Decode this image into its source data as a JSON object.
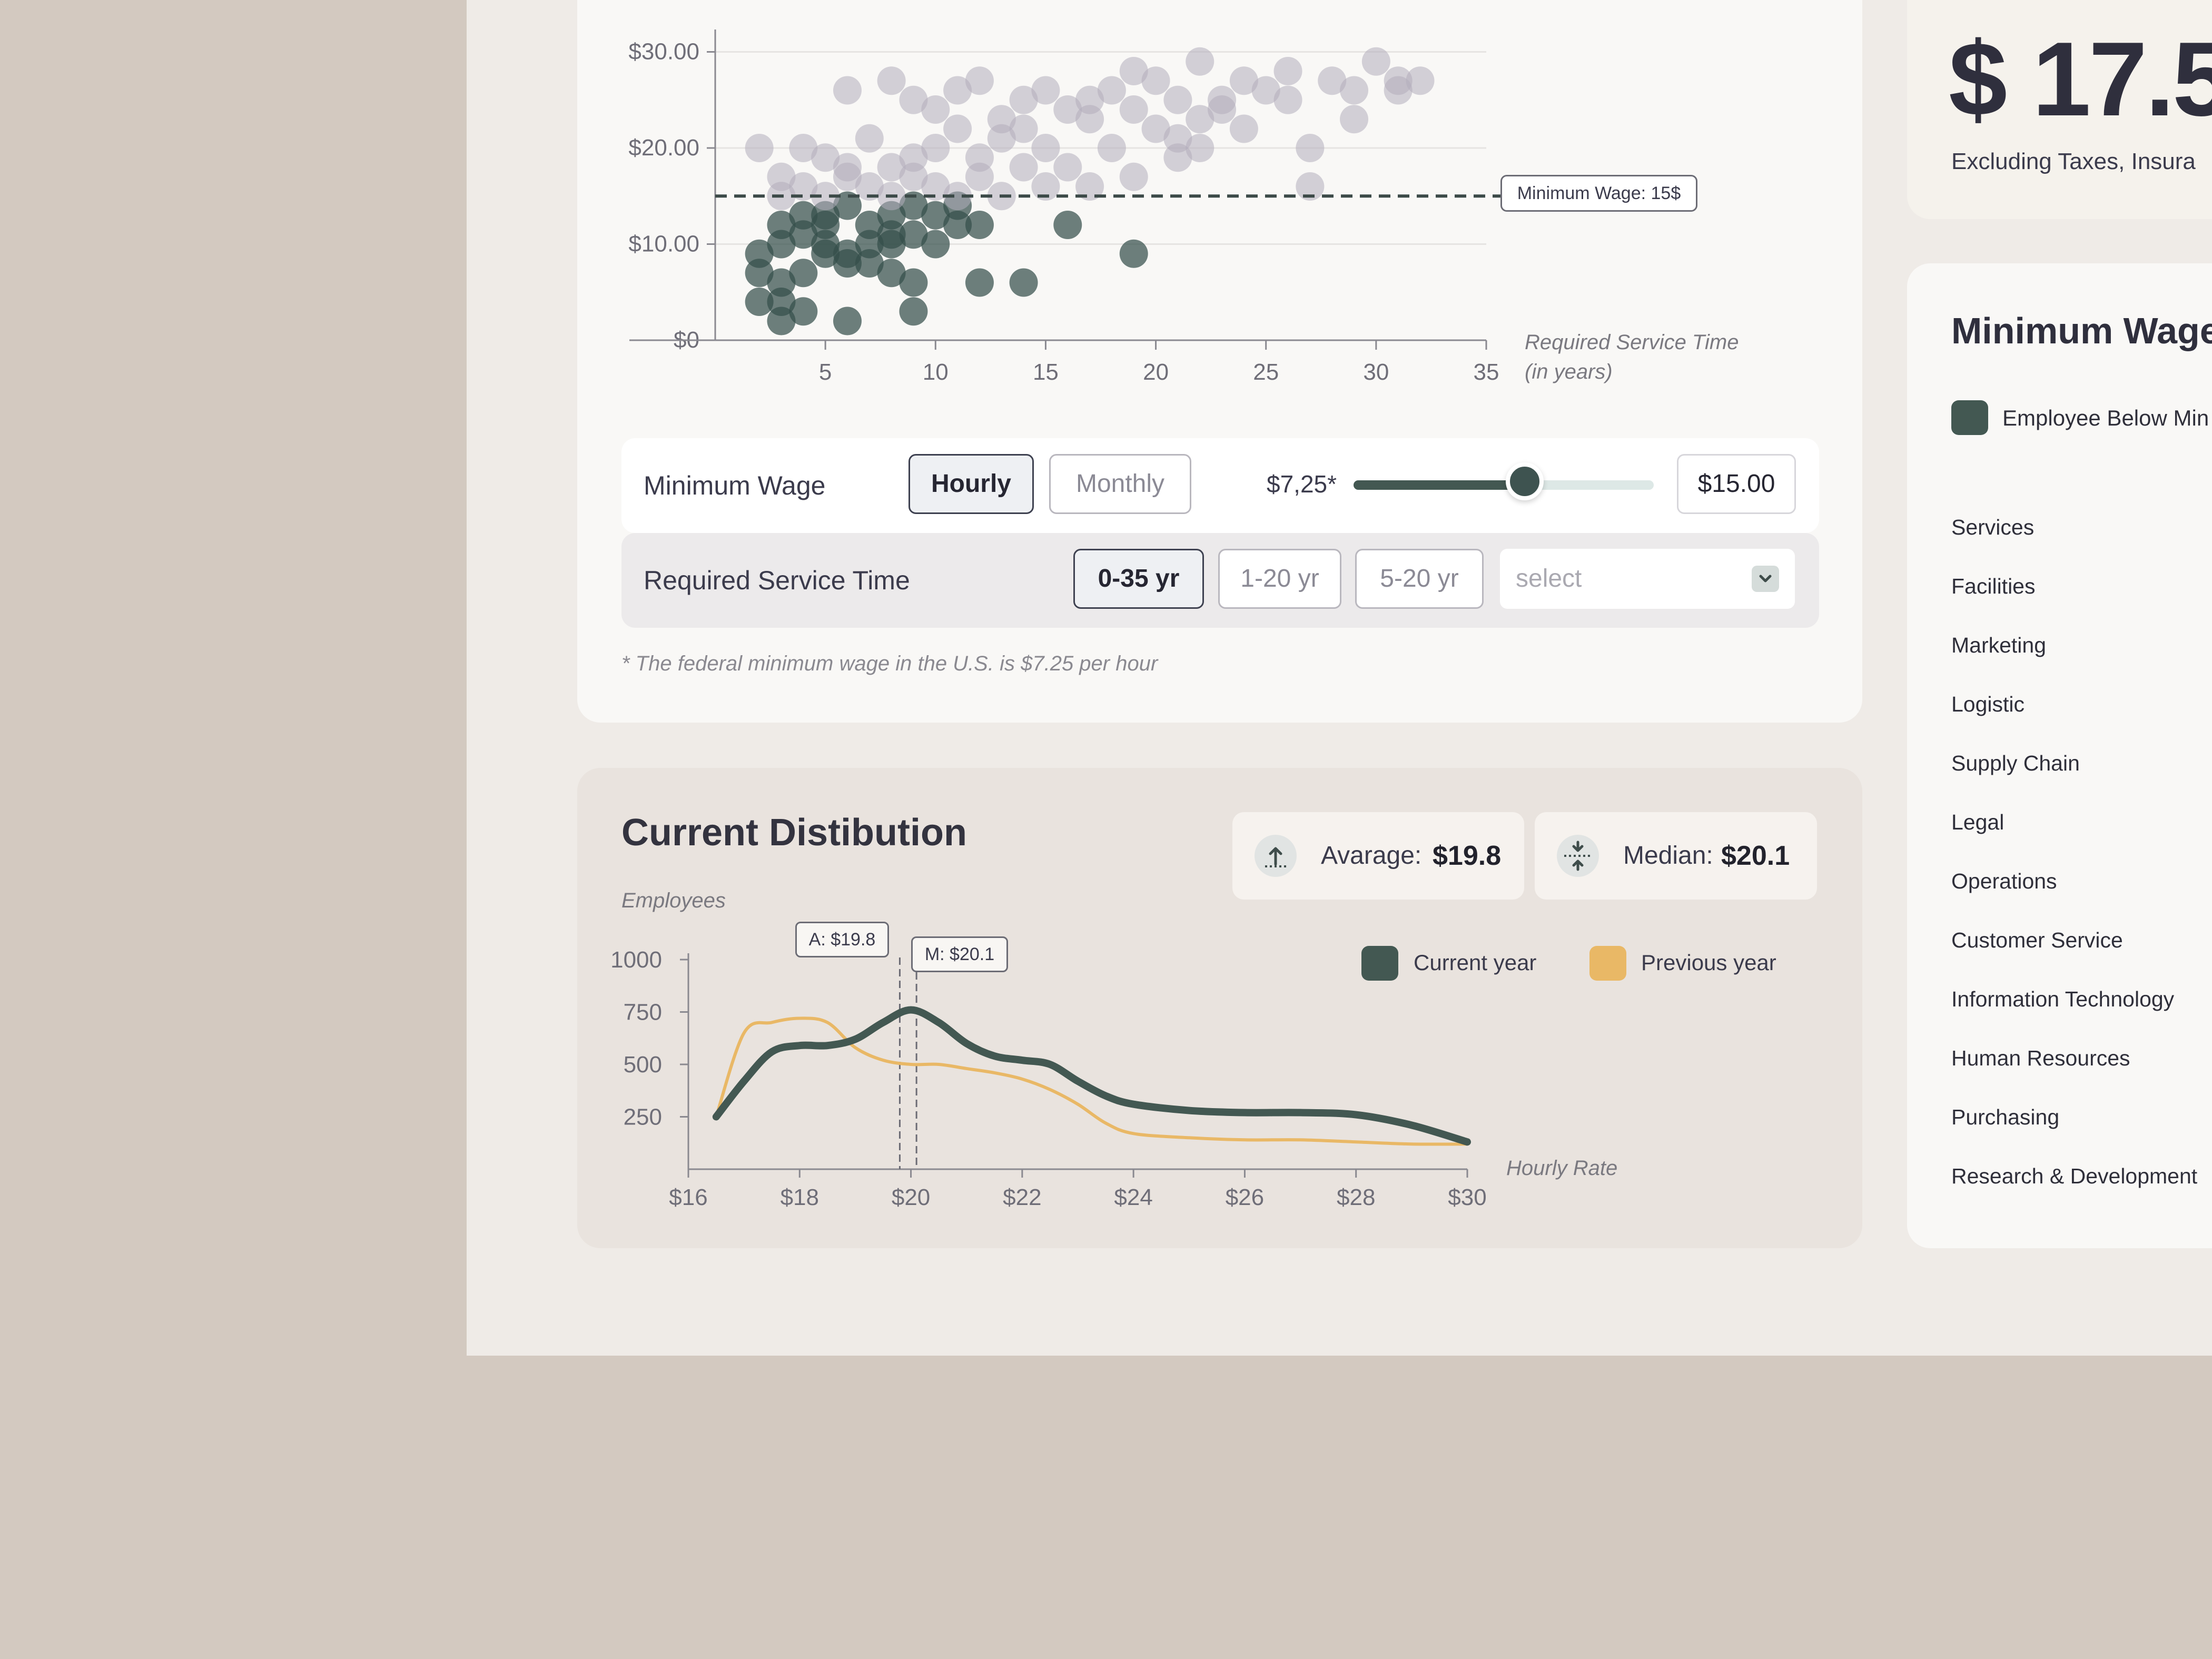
{
  "colors": {
    "below_min": "#344f4b",
    "above_min": "#b3adbc",
    "current_year": "#435852",
    "previous_year": "#e9b866",
    "text_dark": "#3b3b4c"
  },
  "summary": {
    "amount": "$ 17.5",
    "note": "Excluding Taxes, Insura"
  },
  "scatter": {
    "min_wage_label": "Minimum Wage: 15$",
    "x_axis_title_line1": "Required Service Time",
    "x_axis_title_line2": "(in years)"
  },
  "controls": {
    "min_wage_label": "Minimum Wage",
    "hourly": "Hourly",
    "monthly": "Monthly",
    "slider_min": "$7,25*",
    "slider_value_fraction": 0.57,
    "wage_value": "$15.00",
    "service_label": "Required Service Time",
    "range_0_35": "0-35 yr",
    "range_1_20": "1-20 yr",
    "range_5_20": "5-20 yr",
    "select_placeholder": "select",
    "footnote": "* The federal minimum wage in the U.S. is $7.25 per hour"
  },
  "distribution": {
    "title": "Current Distibution",
    "y_axis_title": "Employees",
    "x_axis_title": "Hourly Rate",
    "average_label": "Avarage:",
    "average_value": "$19.8",
    "median_label": "Median:",
    "median_value": "$20.1",
    "marker_a": "A: $19.8",
    "marker_m": "M: $20.1",
    "legend_current": "Current year",
    "legend_previous": "Previous year"
  },
  "side_panel": {
    "title": "Minimum Wage",
    "legend_below": "Employee Below Min",
    "departments": [
      "Services",
      "Facilities",
      "Marketing",
      "Logistic",
      "Supply Chain",
      "Legal",
      "Operations",
      "Customer Service",
      "Information Technology",
      "Human Resources",
      "Purchasing",
      "Research & Development"
    ]
  },
  "chart_data": [
    {
      "type": "scatter",
      "x_ticks": [
        5,
        10,
        15,
        20,
        25,
        30,
        35
      ],
      "y_ticks": [
        "$0",
        "$10.00",
        "$20.00",
        "$30.00"
      ],
      "xlim": [
        0,
        35
      ],
      "ylim": [
        0,
        32
      ],
      "threshold": 15,
      "grid": true,
      "points": [
        [
          3,
          12
        ],
        [
          4,
          13
        ],
        [
          5,
          13
        ],
        [
          6,
          14
        ],
        [
          7,
          12
        ],
        [
          8,
          13
        ],
        [
          9,
          14
        ],
        [
          10,
          13
        ],
        [
          11,
          14
        ],
        [
          12,
          12
        ],
        [
          2,
          9
        ],
        [
          3,
          10
        ],
        [
          4,
          11
        ],
        [
          5,
          10
        ],
        [
          6,
          9
        ],
        [
          7,
          8
        ],
        [
          8,
          10
        ],
        [
          9,
          11
        ],
        [
          10,
          10
        ],
        [
          11,
          12
        ],
        [
          2,
          7
        ],
        [
          3,
          6
        ],
        [
          4,
          7
        ],
        [
          5,
          9
        ],
        [
          6,
          8
        ],
        [
          7,
          10
        ],
        [
          8,
          7
        ],
        [
          9,
          6
        ],
        [
          3,
          4
        ],
        [
          2,
          4
        ],
        [
          4,
          3
        ],
        [
          6,
          2
        ],
        [
          9,
          3
        ],
        [
          12,
          6
        ],
        [
          14,
          6
        ],
        [
          16,
          12
        ],
        [
          19,
          9
        ],
        [
          3,
          2
        ],
        [
          5,
          12
        ],
        [
          8,
          11
        ],
        [
          2,
          20
        ],
        [
          3,
          17
        ],
        [
          4,
          20
        ],
        [
          5,
          19
        ],
        [
          6,
          18
        ],
        [
          7,
          21
        ],
        [
          8,
          18
        ],
        [
          9,
          19
        ],
        [
          10,
          20
        ],
        [
          11,
          22
        ],
        [
          12,
          19
        ],
        [
          13,
          21
        ],
        [
          14,
          22
        ],
        [
          15,
          20
        ],
        [
          16,
          18
        ],
        [
          17,
          23
        ],
        [
          18,
          20
        ],
        [
          19,
          24
        ],
        [
          20,
          22
        ],
        [
          21,
          21
        ],
        [
          22,
          23
        ],
        [
          23,
          25
        ],
        [
          24,
          22
        ],
        [
          25,
          26
        ],
        [
          6,
          26
        ],
        [
          8,
          27
        ],
        [
          9,
          25
        ],
        [
          10,
          24
        ],
        [
          11,
          26
        ],
        [
          12,
          27
        ],
        [
          13,
          23
        ],
        [
          14,
          25
        ],
        [
          15,
          26
        ],
        [
          16,
          24
        ],
        [
          17,
          25
        ],
        [
          18,
          26
        ],
        [
          19,
          28
        ],
        [
          20,
          27
        ],
        [
          21,
          25
        ],
        [
          22,
          29
        ],
        [
          23,
          24
        ],
        [
          24,
          27
        ],
        [
          26,
          25
        ],
        [
          27,
          20
        ],
        [
          28,
          27
        ],
        [
          29,
          23
        ],
        [
          30,
          29
        ],
        [
          31,
          26
        ],
        [
          32,
          27
        ],
        [
          27,
          16
        ],
        [
          3,
          15
        ],
        [
          4,
          16
        ],
        [
          5,
          15
        ],
        [
          6,
          17
        ],
        [
          7,
          16
        ],
        [
          8,
          15
        ],
        [
          9,
          17
        ],
        [
          10,
          16
        ],
        [
          11,
          15
        ],
        [
          12,
          17
        ],
        [
          13,
          15
        ],
        [
          14,
          18
        ],
        [
          15,
          16
        ],
        [
          17,
          16
        ],
        [
          19,
          17
        ],
        [
          21,
          19
        ],
        [
          22,
          20
        ],
        [
          26,
          28
        ],
        [
          29,
          26
        ],
        [
          31,
          27
        ]
      ]
    },
    {
      "type": "line",
      "x": [
        16.5,
        17,
        17.5,
        18,
        18.5,
        19,
        19.5,
        20,
        20.5,
        21,
        21.5,
        22,
        22.5,
        23,
        23.5,
        24,
        25,
        26,
        27,
        28,
        29,
        30
      ],
      "x_ticks": [
        "$16",
        "$18",
        "$20",
        "$22",
        "$24",
        "$26",
        "$28",
        "$30"
      ],
      "y_ticks": [
        250,
        500,
        750,
        1000
      ],
      "xlim": [
        16,
        30
      ],
      "ylim": [
        0,
        1000
      ],
      "series": [
        {
          "name": "Current year",
          "values": [
            250,
            420,
            560,
            590,
            590,
            620,
            700,
            760,
            700,
            600,
            540,
            520,
            500,
            420,
            350,
            310,
            280,
            270,
            270,
            260,
            210,
            130
          ]
        },
        {
          "name": "Previous year",
          "values": [
            250,
            650,
            700,
            720,
            700,
            580,
            520,
            500,
            500,
            480,
            460,
            430,
            380,
            310,
            220,
            170,
            150,
            140,
            140,
            130,
            120,
            120
          ]
        }
      ],
      "markers": [
        19.8,
        20.1
      ]
    }
  ]
}
